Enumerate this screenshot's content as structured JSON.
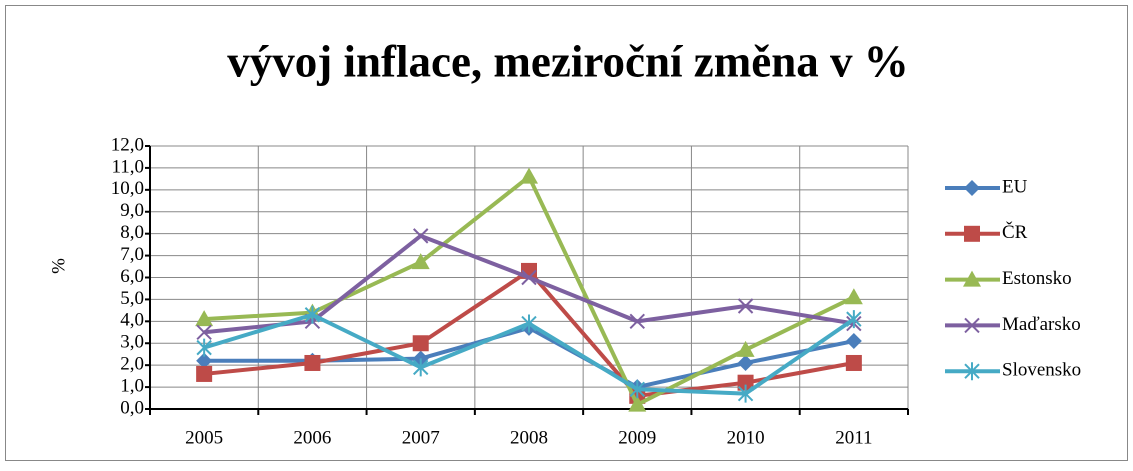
{
  "chart_data": {
    "type": "line",
    "title": "vývoj inflace, meziroční změna v %",
    "y_label": "%",
    "categories": [
      "2005",
      "2006",
      "2007",
      "2008",
      "2009",
      "2010",
      "2011"
    ],
    "series": [
      {
        "name": "EU",
        "color": "#4a7ebb",
        "marker": "diamond",
        "values": [
          2.2,
          2.2,
          2.3,
          3.7,
          1.0,
          2.1,
          3.1
        ]
      },
      {
        "name": "ČR",
        "color": "#be4b48",
        "marker": "square",
        "values": [
          1.6,
          2.1,
          3.0,
          6.3,
          0.6,
          1.2,
          2.1
        ]
      },
      {
        "name": "Estonsko",
        "color": "#98b954",
        "marker": "triangle",
        "values": [
          4.1,
          4.4,
          6.7,
          10.6,
          0.2,
          2.7,
          5.1
        ]
      },
      {
        "name": "Maďarsko",
        "color": "#7d60a0",
        "marker": "x",
        "values": [
          3.5,
          4.0,
          7.9,
          6.0,
          4.0,
          4.7,
          3.9
        ]
      },
      {
        "name": "Slovensko",
        "color": "#46aac5",
        "marker": "star",
        "values": [
          2.8,
          4.3,
          1.9,
          3.9,
          0.9,
          0.7,
          4.1
        ]
      }
    ],
    "ylim": [
      0,
      12
    ],
    "yticks": [
      {
        "value": 0,
        "label": "0,0"
      },
      {
        "value": 1,
        "label": "1,0"
      },
      {
        "value": 2,
        "label": "2,0"
      },
      {
        "value": 3,
        "label": "3,0"
      },
      {
        "value": 4,
        "label": "4,0"
      },
      {
        "value": 5,
        "label": "5,0"
      },
      {
        "value": 6,
        "label": "6,0"
      },
      {
        "value": 7,
        "label": "7,0"
      },
      {
        "value": 8,
        "label": "8,0"
      },
      {
        "value": 9,
        "label": "9,0"
      },
      {
        "value": 10,
        "label": "10,0"
      },
      {
        "value": 11,
        "label": "11,0"
      },
      {
        "value": 12,
        "label": "12,0"
      }
    ],
    "grid": true,
    "legend": "right"
  }
}
